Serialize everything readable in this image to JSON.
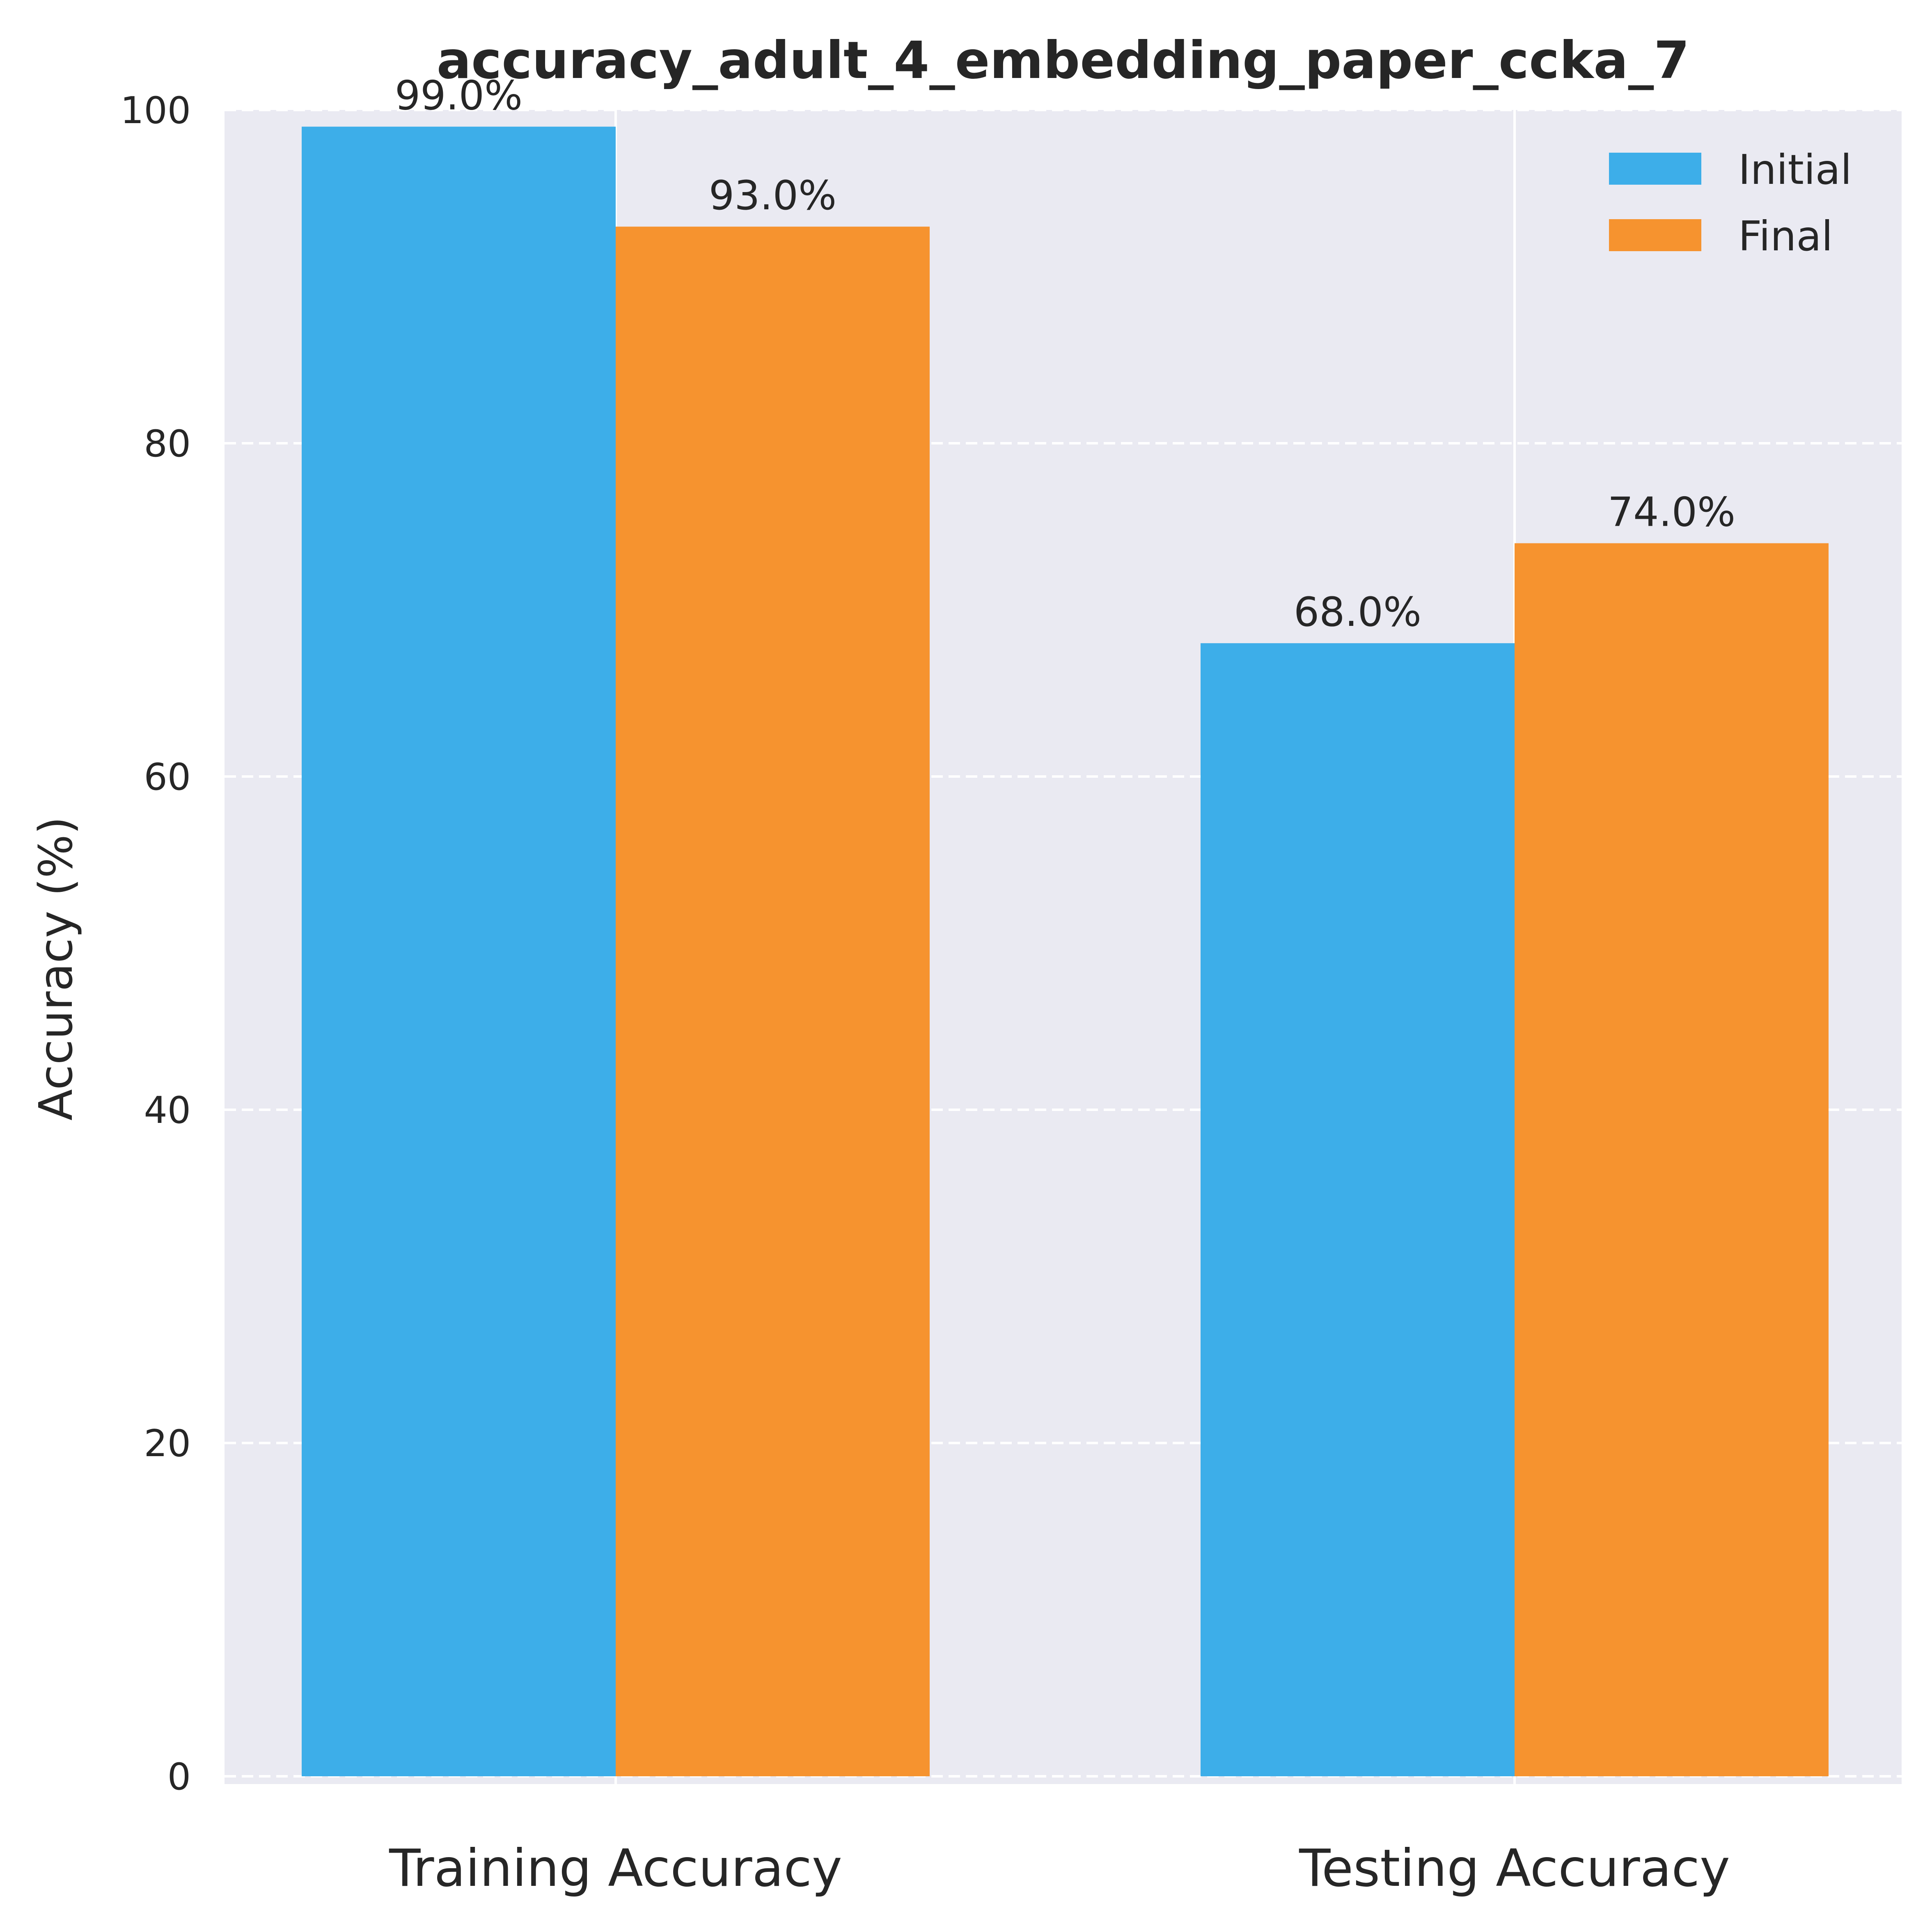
{
  "chart_data": {
    "type": "bar",
    "title": "accuracy_adult_4_embedding_paper_ccka_7",
    "xlabel": "",
    "ylabel": "Accuracy (%)",
    "categories": [
      "Training Accuracy",
      "Testing Accuracy"
    ],
    "series": [
      {
        "name": "Initial",
        "values": [
          99.0,
          68.0
        ],
        "color": "#3daee9",
        "labels": [
          "99.0%",
          "68.0%"
        ]
      },
      {
        "name": "Final",
        "values": [
          93.0,
          74.0
        ],
        "color": "#f6932f",
        "labels": [
          "93.0%",
          "74.0%"
        ]
      }
    ],
    "ylim": [
      0,
      100
    ],
    "yticks": [
      0,
      20,
      40,
      60,
      80,
      100
    ],
    "grid": true,
    "legend": "top-right",
    "background": "#eaeaf2"
  }
}
